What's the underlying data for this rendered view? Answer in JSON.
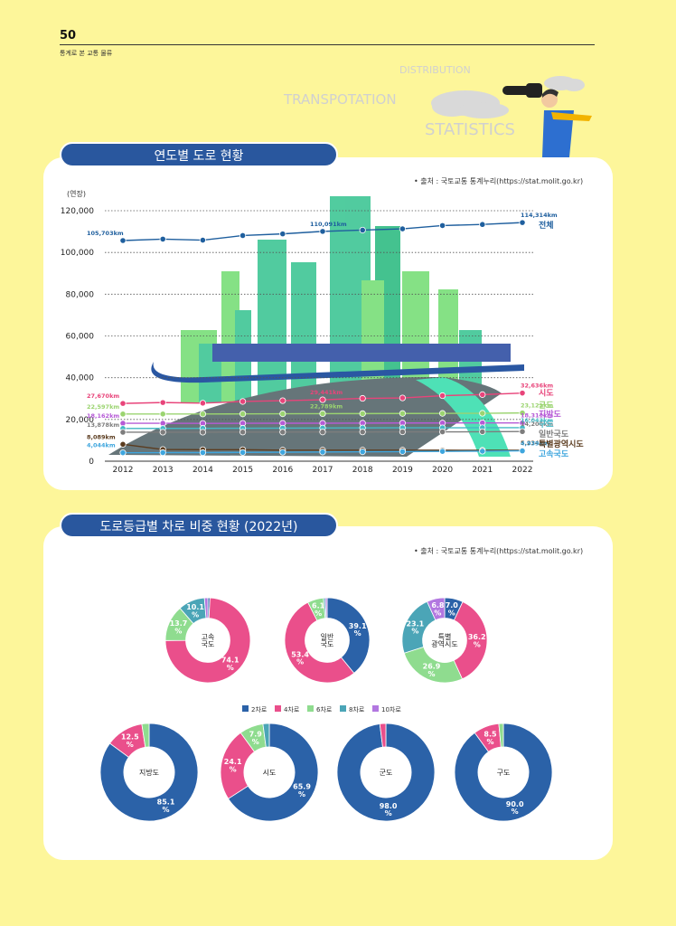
{
  "header": {
    "page_number": "50",
    "subtitle": "통계로 본 교통 물류"
  },
  "decor": {
    "w1": "DISTRIBUTION",
    "w2": "TRANSPOTATION",
    "w3": "STATISTICS"
  },
  "section1": {
    "title": "연도별 도로 현황",
    "source": "• 출처 : 국토교통 통계누리(https://stat.molit.go.kr)"
  },
  "section2": {
    "title": "도로등급별 차로 비중 현황 (2022년)",
    "source": "• 출처 : 국토교통 통계누리(https://stat.molit.go.kr)"
  },
  "chart_data": [
    {
      "type": "line",
      "ylabel": "(연장)",
      "ylim": [
        0,
        120000
      ],
      "yticks": [
        "0",
        "20,000",
        "40,000",
        "60,000",
        "80,000",
        "100,000",
        "120,000"
      ],
      "categories": [
        "2012",
        "2013",
        "2014",
        "2015",
        "2016",
        "2017",
        "2018",
        "2019",
        "2020",
        "2021",
        "2022"
      ],
      "series": [
        {
          "name": "전체",
          "color": "#1f5f9e",
          "values": [
            105703,
            106400,
            105900,
            108100,
            108900,
            110091,
            110700,
            111300,
            112900,
            113400,
            114314
          ],
          "labels": [
            {
              "i": 0,
              "text": "105,703km"
            },
            {
              "i": 5,
              "text": "110,091km"
            },
            {
              "i": 10,
              "text": "114,314km"
            }
          ]
        },
        {
          "name": "시도",
          "color": "#e8447a",
          "values": [
            27670,
            28100,
            27800,
            28600,
            29000,
            29441,
            30100,
            30300,
            31400,
            31900,
            32636
          ],
          "labels": [
            {
              "i": 0,
              "text": "27,670km"
            },
            {
              "i": 5,
              "text": "29,441km"
            },
            {
              "i": 10,
              "text": "32,636km"
            }
          ]
        },
        {
          "name": "군도",
          "color": "#9bd470",
          "values": [
            22597,
            22600,
            22600,
            22650,
            22700,
            22789,
            22800,
            22850,
            22900,
            22950,
            23121
          ],
          "labels": [
            {
              "i": 0,
              "text": "22,597km"
            },
            {
              "i": 5,
              "text": "22,789km"
            },
            {
              "i": 10,
              "text": "23,121km"
            }
          ]
        },
        {
          "name": "지방도",
          "color": "#b55ad6",
          "values": [
            18162,
            18150,
            18100,
            18150,
            18200,
            18200,
            18250,
            18300,
            18300,
            18350,
            18311
          ],
          "labels": [
            {
              "i": 0,
              "text": "18,162km"
            },
            {
              "i": 10,
              "text": "18,311km"
            }
          ]
        },
        {
          "name": "구도",
          "color": "#45b8c4",
          "values": [
            15678,
            15700,
            15750,
            15800,
            15850,
            15900,
            15950,
            16000,
            16000,
            16050,
            16043
          ],
          "labels": [
            {
              "i": 10,
              "text": "16,043km"
            }
          ]
        },
        {
          "name": "일반국도",
          "color": "#7d7d7d",
          "values": [
            13878,
            13900,
            13900,
            13950,
            13950,
            13983,
            14000,
            14050,
            14050,
            14100,
            14200
          ],
          "labels": [
            {
              "i": 0,
              "text": "13,878km"
            },
            {
              "i": 10,
              "text": "14,200km"
            }
          ]
        },
        {
          "name": "특별광역시도",
          "color": "#5b3c1f",
          "values": [
            8089,
            5600,
            5500,
            5500,
            5300,
            5300,
            5300,
            5300,
            5250,
            5240,
            5234
          ],
          "labels": [
            {
              "i": 0,
              "text": "8,089km"
            },
            {
              "i": 10,
              "text": "5,234km"
            }
          ]
        },
        {
          "name": "고속국도",
          "color": "#3fa6de",
          "values": [
            4044,
            4100,
            4100,
            4200,
            4300,
            4400,
            4500,
            4600,
            4700,
            4800,
            4939
          ],
          "labels": [
            {
              "i": 0,
              "text": "4,044km"
            },
            {
              "i": 10,
              "text": "4,939km"
            }
          ]
        }
      ]
    },
    {
      "type": "pie",
      "legend": [
        {
          "label": "2차로",
          "color": "#2b62a8"
        },
        {
          "label": "4차로",
          "color": "#ea4f8b"
        },
        {
          "label": "6차로",
          "color": "#8fdc8f"
        },
        {
          "label": "8차로",
          "color": "#4ba5b7"
        },
        {
          "label": "10차로",
          "color": "#b277e0"
        }
      ],
      "pies": [
        {
          "name": "고속\n국도",
          "values": [
            0.8,
            74.1,
            13.7,
            10.1,
            1.3
          ],
          "labels": [
            "",
            "74.1\n%",
            "13.7\n%",
            "10.1\n%",
            ""
          ]
        },
        {
          "name": "일반\n국도",
          "values": [
            39.1,
            53.4,
            6.1,
            0.7,
            0.7
          ],
          "labels": [
            "39.1\n%",
            "53.4\n%",
            "6.1\n%",
            "",
            ""
          ]
        },
        {
          "name": "특별\n광역시도",
          "values": [
            7.0,
            36.2,
            26.9,
            23.1,
            6.8
          ],
          "labels": [
            "7.0\n%",
            "36.2\n%",
            "26.9\n%",
            "23.1\n%",
            "6.8\n%"
          ]
        },
        {
          "name": "지방도",
          "values": [
            85.1,
            12.5,
            2.4,
            0,
            0
          ],
          "labels": [
            "85.1\n%",
            "12.5\n%",
            "",
            "",
            ""
          ]
        },
        {
          "name": "시도",
          "values": [
            65.9,
            24.1,
            7.9,
            2.1,
            0
          ],
          "labels": [
            "65.9\n%",
            "24.1\n%",
            "7.9\n%",
            "",
            ""
          ]
        },
        {
          "name": "군도",
          "values": [
            98.0,
            2.0,
            0,
            0,
            0
          ],
          "labels": [
            "98.0\n%",
            "",
            "",
            "",
            ""
          ]
        },
        {
          "name": "구도",
          "values": [
            90.0,
            8.5,
            1.5,
            0,
            0
          ],
          "labels": [
            "90.0\n%",
            "8.5\n%",
            "",
            "",
            ""
          ]
        }
      ]
    }
  ]
}
